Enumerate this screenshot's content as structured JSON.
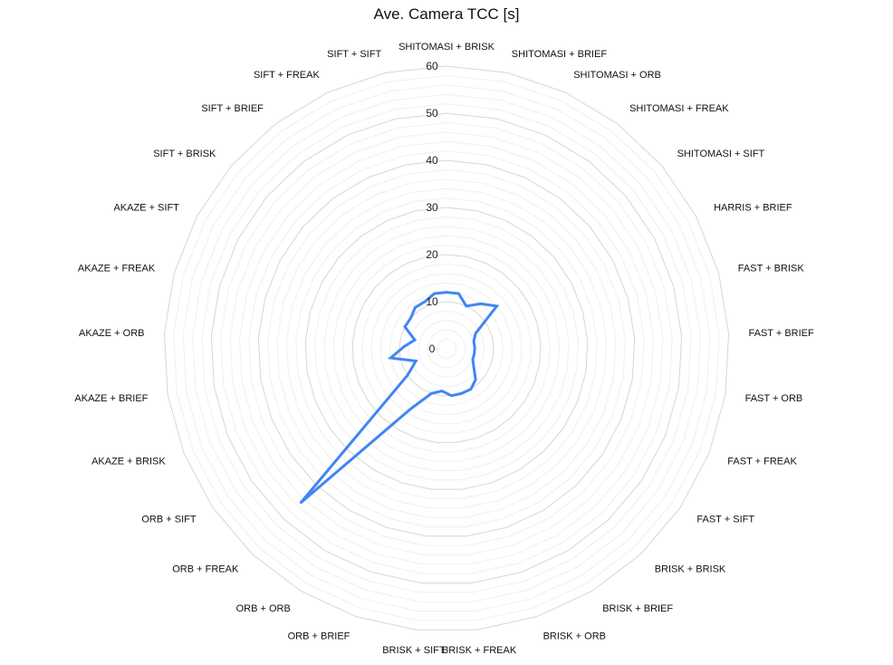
{
  "chart_data": {
    "type": "radar",
    "title": "Ave. Camera TCC [s]",
    "categories": [
      "SHITOMASI + BRISK",
      "SHITOMASI + BRIEF",
      "SHITOMASI + ORB",
      "SHITOMASI + FREAK",
      "SHITOMASI + SIFT",
      "HARRIS + BRIEF",
      "FAST + BRISK",
      "FAST + BRIEF",
      "FAST + ORB",
      "FAST + FREAK",
      "FAST + SIFT",
      "BRISK + BRISK",
      "BRISK + BRIEF",
      "BRISK + ORB",
      "BRISK + FREAK",
      "BRISK + SIFT",
      "ORB + BRIEF",
      "ORB + ORB",
      "ORB + FREAK",
      "ORB + SIFT",
      "AKAZE + BRISK",
      "AKAZE + BRIEF",
      "AKAZE + ORB",
      "AKAZE + FREAK",
      "AKAZE + SIFT",
      "SIFT + BRISK",
      "SIFT + BRIEF",
      "SIFT + FREAK",
      "SIFT + SIFT"
    ],
    "series": [
      {
        "values": [
          12,
          12,
          10,
          12,
          14,
          7,
          6,
          6,
          6,
          6,
          7,
          9,
          10,
          10,
          10,
          9,
          10,
          15,
          45,
          10,
          7,
          12,
          9,
          7,
          10,
          10,
          11,
          11,
          12
        ],
        "color": "#4285f4"
      }
    ],
    "rlim": [
      0,
      60
    ],
    "ticks": [
      "0",
      "10",
      "20",
      "30",
      "40",
      "50",
      "60"
    ],
    "grid": true,
    "legend": "none"
  }
}
